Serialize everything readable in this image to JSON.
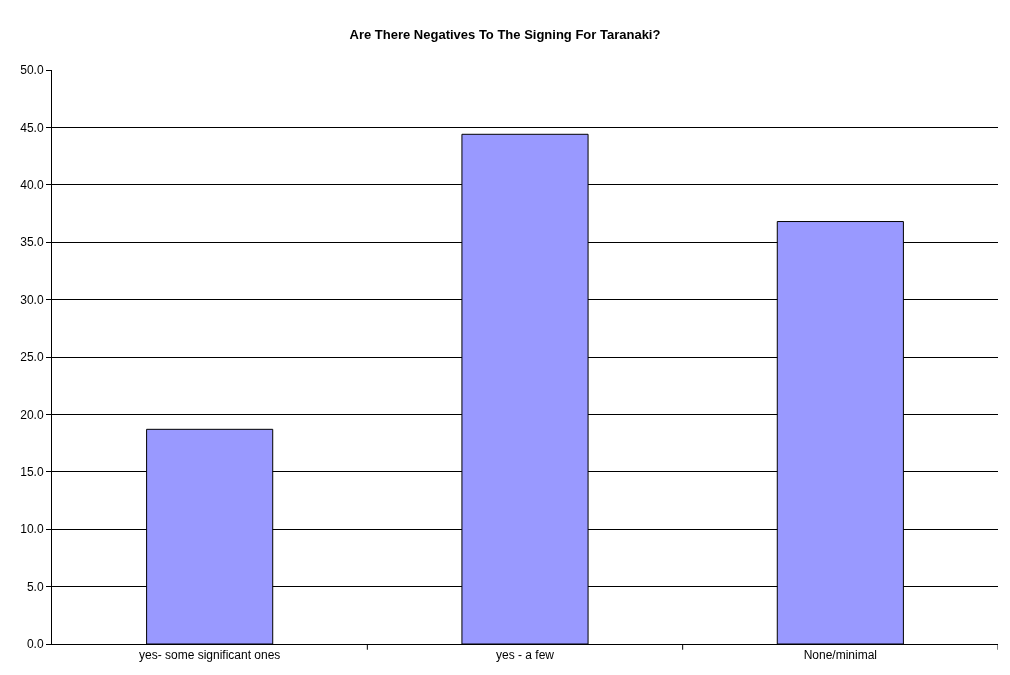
{
  "chart_data": {
    "type": "bar",
    "title": "Are There Negatives To The Signing For Taranaki?",
    "categories": [
      "yes- some significant ones",
      "yes - a few",
      "None/minimal"
    ],
    "values": [
      18.7,
      44.4,
      36.8
    ],
    "color": "#9999ff",
    "ylim": [
      0,
      50
    ],
    "yticks": [
      {
        "value": 0,
        "label": "0.0"
      },
      {
        "value": 5,
        "label": "5.0"
      },
      {
        "value": 10,
        "label": "10.0"
      },
      {
        "value": 15,
        "label": "15.0"
      },
      {
        "value": 20,
        "label": "20.0"
      },
      {
        "value": 25,
        "label": "25.0"
      },
      {
        "value": 30,
        "label": "30.0"
      },
      {
        "value": 35,
        "label": "35.0"
      },
      {
        "value": 40,
        "label": "40.0"
      },
      {
        "value": 45,
        "label": "45.0"
      },
      {
        "value": 50,
        "label": "50.0"
      }
    ],
    "grid": "y"
  }
}
